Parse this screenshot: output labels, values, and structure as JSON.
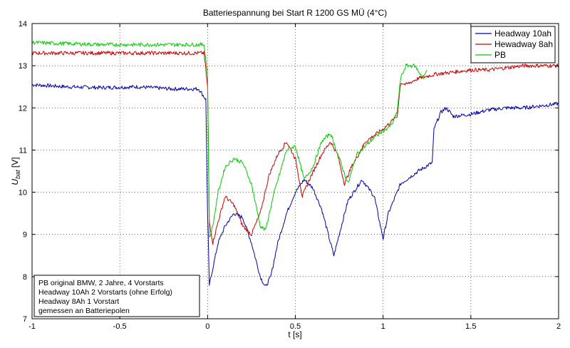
{
  "chart_data": {
    "type": "line",
    "title": "Batteriespannung bei Start R 1200 GS MÜ (4°C)",
    "xlabel": "t [s]",
    "ylabel_main": "U",
    "ylabel_sub": "bat",
    "ylabel_unit": " [V]",
    "xlim": [
      -1,
      2
    ],
    "ylim": [
      7,
      14
    ],
    "xticks": [
      -1,
      -0.5,
      0,
      0.5,
      1,
      1.5,
      2
    ],
    "xtick_labels": [
      "-1",
      "-0.5",
      "0",
      "0.5",
      "1",
      "1.5",
      "2"
    ],
    "yticks": [
      7,
      8,
      9,
      10,
      11,
      12,
      13,
      14
    ],
    "ytick_labels": [
      "7",
      "8",
      "9",
      "10",
      "11",
      "12",
      "13",
      "14"
    ],
    "grid": true,
    "legend_position": "top-right",
    "series": [
      {
        "name": "Headway 10ah",
        "color": "#0000aa",
        "points": [
          [
            -1,
            12.55
          ],
          [
            -0.8,
            12.5
          ],
          [
            -0.6,
            12.48
          ],
          [
            -0.4,
            12.5
          ],
          [
            -0.2,
            12.45
          ],
          [
            -0.05,
            12.45
          ],
          [
            -0.01,
            12.2
          ],
          [
            0.0,
            9.5
          ],
          [
            0.01,
            7.8
          ],
          [
            0.03,
            8.2
          ],
          [
            0.06,
            8.8
          ],
          [
            0.1,
            9.2
          ],
          [
            0.15,
            9.5
          ],
          [
            0.2,
            9.4
          ],
          [
            0.25,
            8.8
          ],
          [
            0.3,
            8.0
          ],
          [
            0.33,
            7.75
          ],
          [
            0.36,
            8.0
          ],
          [
            0.4,
            8.8
          ],
          [
            0.45,
            9.5
          ],
          [
            0.5,
            10.0
          ],
          [
            0.55,
            10.3
          ],
          [
            0.6,
            10.1
          ],
          [
            0.65,
            9.6
          ],
          [
            0.7,
            8.8
          ],
          [
            0.72,
            8.5
          ],
          [
            0.75,
            9.0
          ],
          [
            0.8,
            9.8
          ],
          [
            0.88,
            10.3
          ],
          [
            0.95,
            9.9
          ],
          [
            1.0,
            8.9
          ],
          [
            1.03,
            9.5
          ],
          [
            1.1,
            10.2
          ],
          [
            1.2,
            10.5
          ],
          [
            1.28,
            10.7
          ],
          [
            1.29,
            11.5
          ],
          [
            1.33,
            11.9
          ],
          [
            1.36,
            12.0
          ],
          [
            1.4,
            11.8
          ],
          [
            1.5,
            11.85
          ],
          [
            1.6,
            11.95
          ],
          [
            1.7,
            12.0
          ],
          [
            1.8,
            12.0
          ],
          [
            1.9,
            12.05
          ],
          [
            2.0,
            12.1
          ]
        ]
      },
      {
        "name": "Hewadway 8ah",
        "color": "#cc0000",
        "points": [
          [
            -1,
            13.3
          ],
          [
            -0.6,
            13.3
          ],
          [
            -0.2,
            13.3
          ],
          [
            -0.02,
            13.3
          ],
          [
            0.0,
            12.5
          ],
          [
            0.01,
            9.3
          ],
          [
            0.03,
            8.8
          ],
          [
            0.06,
            9.3
          ],
          [
            0.1,
            9.9
          ],
          [
            0.15,
            9.7
          ],
          [
            0.2,
            9.2
          ],
          [
            0.25,
            9.0
          ],
          [
            0.3,
            9.5
          ],
          [
            0.35,
            10.4
          ],
          [
            0.4,
            10.9
          ],
          [
            0.45,
            11.2
          ],
          [
            0.5,
            10.8
          ],
          [
            0.54,
            9.9
          ],
          [
            0.58,
            10.3
          ],
          [
            0.65,
            10.9
          ],
          [
            0.7,
            11.2
          ],
          [
            0.74,
            10.9
          ],
          [
            0.78,
            10.2
          ],
          [
            0.82,
            10.6
          ],
          [
            0.9,
            11.2
          ],
          [
            1.0,
            11.5
          ],
          [
            1.08,
            11.8
          ],
          [
            1.1,
            12.6
          ],
          [
            1.13,
            12.55
          ],
          [
            1.2,
            12.7
          ],
          [
            1.3,
            12.8
          ],
          [
            1.4,
            12.85
          ],
          [
            1.5,
            12.9
          ],
          [
            1.6,
            12.9
          ],
          [
            1.7,
            12.95
          ],
          [
            1.8,
            13.0
          ],
          [
            1.9,
            13.0
          ],
          [
            2.0,
            13.0
          ]
        ]
      },
      {
        "name": "PB",
        "color": "#00cc00",
        "points": [
          [
            -1,
            13.55
          ],
          [
            -0.6,
            13.5
          ],
          [
            -0.2,
            13.5
          ],
          [
            -0.02,
            13.5
          ],
          [
            0.0,
            12.8
          ],
          [
            0.01,
            8.9
          ],
          [
            0.03,
            9.2
          ],
          [
            0.06,
            10.0
          ],
          [
            0.1,
            10.6
          ],
          [
            0.15,
            10.8
          ],
          [
            0.2,
            10.7
          ],
          [
            0.25,
            10.2
          ],
          [
            0.3,
            9.2
          ],
          [
            0.33,
            9.1
          ],
          [
            0.38,
            10.0
          ],
          [
            0.45,
            11.0
          ],
          [
            0.5,
            11.1
          ],
          [
            0.55,
            10.3
          ],
          [
            0.6,
            10.6
          ],
          [
            0.65,
            11.2
          ],
          [
            0.7,
            11.4
          ],
          [
            0.75,
            10.8
          ],
          [
            0.8,
            10.2
          ],
          [
            0.85,
            10.9
          ],
          [
            0.95,
            11.3
          ],
          [
            1.05,
            11.6
          ],
          [
            1.08,
            11.9
          ],
          [
            1.1,
            12.7
          ],
          [
            1.13,
            13.0
          ],
          [
            1.18,
            13.0
          ],
          [
            1.23,
            12.7
          ],
          [
            1.25,
            12.9
          ]
        ]
      }
    ]
  },
  "legend": {
    "items": [
      {
        "label": "Headway 10ah",
        "color": "#0000aa"
      },
      {
        "label": "Hewadway 8ah",
        "color": "#cc0000"
      },
      {
        "label": "PB",
        "color": "#00cc00"
      }
    ]
  },
  "note": {
    "lines": [
      "PB original BMW, 2 Jahre, 4 Vorstarts",
      "Headway 10Ah 2 Vorstarts (ohne Erfolg)",
      "Headway 8Ah 1 Vorstart",
      "gemessen an Batteriepolen"
    ]
  }
}
